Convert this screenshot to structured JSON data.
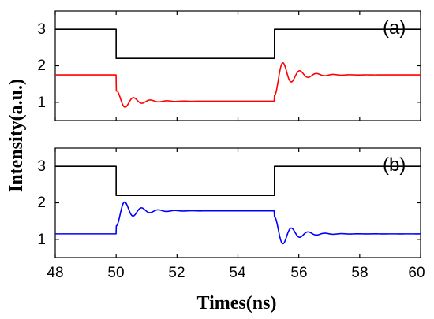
{
  "chart_data": [
    {
      "panel": "(a)",
      "type": "line",
      "xlim": [
        48,
        60
      ],
      "ylim": [
        0.5,
        3.5
      ],
      "yticks": [
        1,
        2,
        3
      ],
      "grid": false,
      "series": [
        {
          "color": "#000000",
          "kind": "square_pulse",
          "base": 3.0,
          "low": 2.2,
          "edges": [
            50.0,
            55.2
          ]
        },
        {
          "color": "#ff0000",
          "kind": "damped_response",
          "base": 1.75,
          "low": 1.03,
          "edges": [
            50.0,
            55.2
          ],
          "fall_first_extreme": 0.87,
          "rise_first_extreme": 2.08,
          "ringing_period_ns": 0.55,
          "settle_ns": 1.8
        }
      ]
    },
    {
      "panel": "(b)",
      "type": "line",
      "xlim": [
        48,
        60
      ],
      "ylim": [
        0.5,
        3.5
      ],
      "yticks": [
        1,
        2,
        3
      ],
      "xticks": [
        48,
        50,
        52,
        54,
        56,
        58,
        60
      ],
      "grid": false,
      "series": [
        {
          "color": "#000000",
          "kind": "square_pulse",
          "base": 3.0,
          "low": 2.2,
          "edges": [
            50.0,
            55.2
          ]
        },
        {
          "color": "#0000ff",
          "kind": "damped_response",
          "base": 1.15,
          "low": 1.78,
          "edges": [
            50.0,
            55.2
          ],
          "fall_first_extreme": 2.02,
          "rise_first_extreme": 0.88,
          "ringing_period_ns": 0.55,
          "settle_ns": 1.8
        }
      ]
    }
  ],
  "axes": {
    "xlabel": "Times(ns)",
    "ylabel": "Intensity(a.u.)",
    "xticks": [
      "48",
      "50",
      "52",
      "54",
      "56",
      "58",
      "60"
    ],
    "yticks": [
      "1",
      "2",
      "3"
    ],
    "panel_labels": [
      "(a)",
      "(b)"
    ]
  }
}
